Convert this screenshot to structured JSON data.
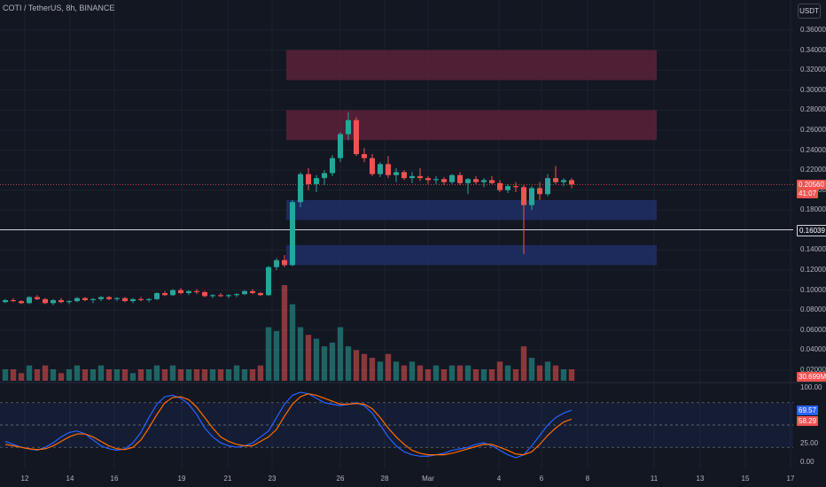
{
  "header": {
    "symbol_title": "COTI / TetherUS, 8h, BINANCE",
    "currency_button": "USDT"
  },
  "colors": {
    "background": "#131722",
    "up": "#26a69a",
    "down": "#ef5350",
    "supply_zone": "#5b2138",
    "demand_zone": "#1e2f66",
    "stoch_k": "#2962ff",
    "stoch_d": "#ff6d00"
  },
  "price_axis": {
    "ticks": [
      "0.36000",
      "0.34000",
      "0.32000",
      "0.30000",
      "0.28000",
      "0.26000",
      "0.24000",
      "0.22000",
      "0.20000",
      "0.18000",
      "0.16000",
      "0.14000",
      "0.12000",
      "0.10000",
      "0.08000",
      "0.06000",
      "0.04000",
      "0.02000"
    ],
    "last_price_label": "0.20560",
    "countdown_label": "41:07",
    "horizontal_line_label": "0.16039",
    "volume_label": "30.699M"
  },
  "osc_axis": {
    "ticks": [
      "100.00",
      "25.00",
      "0.00"
    ],
    "k_label": "69.57",
    "d_label": "58.29"
  },
  "time_axis": {
    "labels": [
      "12",
      "14",
      "16",
      "19",
      "21",
      "23",
      "26",
      "28",
      "Mar",
      "4",
      "6",
      "8",
      "11",
      "13",
      "15",
      "17"
    ]
  },
  "chart_data": {
    "type": "candlestick",
    "price_range": [
      0.0,
      0.37
    ],
    "last_price": 0.2056,
    "horizontal_line": 0.16039,
    "zones": [
      {
        "kind": "supply",
        "from": 0.31,
        "to": 0.34
      },
      {
        "kind": "supply",
        "from": 0.25,
        "to": 0.28
      },
      {
        "kind": "demand",
        "from": 0.17,
        "to": 0.19
      },
      {
        "kind": "demand",
        "from": 0.125,
        "to": 0.145
      }
    ],
    "candles": [
      [
        0.088,
        0.091,
        0.087,
        0.09
      ],
      [
        0.09,
        0.092,
        0.088,
        0.089
      ],
      [
        0.089,
        0.09,
        0.086,
        0.087
      ],
      [
        0.087,
        0.094,
        0.086,
        0.093
      ],
      [
        0.093,
        0.095,
        0.09,
        0.091
      ],
      [
        0.091,
        0.092,
        0.086,
        0.087
      ],
      [
        0.087,
        0.091,
        0.085,
        0.09
      ],
      [
        0.09,
        0.092,
        0.087,
        0.088
      ],
      [
        0.088,
        0.09,
        0.086,
        0.089
      ],
      [
        0.089,
        0.093,
        0.088,
        0.092
      ],
      [
        0.092,
        0.093,
        0.089,
        0.09
      ],
      [
        0.09,
        0.092,
        0.087,
        0.091
      ],
      [
        0.091,
        0.094,
        0.089,
        0.093
      ],
      [
        0.093,
        0.094,
        0.09,
        0.091
      ],
      [
        0.091,
        0.093,
        0.089,
        0.092
      ],
      [
        0.092,
        0.093,
        0.088,
        0.089
      ],
      [
        0.089,
        0.092,
        0.087,
        0.091
      ],
      [
        0.091,
        0.093,
        0.089,
        0.09
      ],
      [
        0.09,
        0.092,
        0.088,
        0.091
      ],
      [
        0.091,
        0.098,
        0.09,
        0.097
      ],
      [
        0.097,
        0.099,
        0.094,
        0.095
      ],
      [
        0.095,
        0.101,
        0.094,
        0.1
      ],
      [
        0.1,
        0.102,
        0.096,
        0.097
      ],
      [
        0.097,
        0.1,
        0.095,
        0.099
      ],
      [
        0.099,
        0.101,
        0.096,
        0.098
      ],
      [
        0.098,
        0.099,
        0.093,
        0.094
      ],
      [
        0.094,
        0.096,
        0.092,
        0.095
      ],
      [
        0.095,
        0.097,
        0.093,
        0.094
      ],
      [
        0.094,
        0.096,
        0.092,
        0.095
      ],
      [
        0.095,
        0.097,
        0.093,
        0.096
      ],
      [
        0.096,
        0.1,
        0.095,
        0.099
      ],
      [
        0.099,
        0.101,
        0.096,
        0.097
      ],
      [
        0.097,
        0.098,
        0.094,
        0.095
      ],
      [
        0.095,
        0.124,
        0.094,
        0.123
      ],
      [
        0.123,
        0.132,
        0.12,
        0.13
      ],
      [
        0.13,
        0.135,
        0.123,
        0.125
      ],
      [
        0.125,
        0.19,
        0.124,
        0.188
      ],
      [
        0.188,
        0.218,
        0.183,
        0.216
      ],
      [
        0.216,
        0.222,
        0.2,
        0.206
      ],
      [
        0.206,
        0.215,
        0.198,
        0.212
      ],
      [
        0.212,
        0.22,
        0.205,
        0.217
      ],
      [
        0.217,
        0.235,
        0.214,
        0.232
      ],
      [
        0.232,
        0.258,
        0.228,
        0.256
      ],
      [
        0.256,
        0.278,
        0.25,
        0.27
      ],
      [
        0.27,
        0.273,
        0.234,
        0.236
      ],
      [
        0.236,
        0.242,
        0.228,
        0.232
      ],
      [
        0.232,
        0.236,
        0.214,
        0.216
      ],
      [
        0.216,
        0.228,
        0.213,
        0.226
      ],
      [
        0.226,
        0.234,
        0.212,
        0.215
      ],
      [
        0.215,
        0.222,
        0.208,
        0.218
      ],
      [
        0.218,
        0.22,
        0.21,
        0.212
      ],
      [
        0.212,
        0.218,
        0.207,
        0.214
      ],
      [
        0.214,
        0.222,
        0.209,
        0.212
      ],
      [
        0.212,
        0.214,
        0.206,
        0.21
      ],
      [
        0.21,
        0.214,
        0.206,
        0.211
      ],
      [
        0.211,
        0.213,
        0.205,
        0.208
      ],
      [
        0.208,
        0.216,
        0.206,
        0.215
      ],
      [
        0.215,
        0.218,
        0.205,
        0.207
      ],
      [
        0.207,
        0.212,
        0.196,
        0.211
      ],
      [
        0.211,
        0.214,
        0.206,
        0.208
      ],
      [
        0.208,
        0.212,
        0.203,
        0.21
      ],
      [
        0.21,
        0.214,
        0.206,
        0.207
      ],
      [
        0.207,
        0.21,
        0.198,
        0.2
      ],
      [
        0.2,
        0.206,
        0.197,
        0.204
      ],
      [
        0.204,
        0.208,
        0.198,
        0.203
      ],
      [
        0.203,
        0.205,
        0.136,
        0.185
      ],
      [
        0.185,
        0.204,
        0.18,
        0.202
      ],
      [
        0.202,
        0.208,
        0.19,
        0.196
      ],
      [
        0.196,
        0.216,
        0.194,
        0.212
      ],
      [
        0.212,
        0.224,
        0.206,
        0.208
      ],
      [
        0.208,
        0.212,
        0.204,
        0.21
      ],
      [
        0.21,
        0.212,
        0.202,
        0.2056
      ]
    ],
    "volumes": [
      3,
      3,
      2,
      4,
      3,
      4,
      3,
      2,
      3,
      4,
      3,
      3,
      4,
      3,
      3,
      3,
      2,
      3,
      3,
      4,
      3,
      4,
      3,
      3,
      3,
      3,
      3,
      3,
      3,
      4,
      3,
      3,
      4,
      14,
      13,
      25,
      20,
      14,
      12,
      11,
      9,
      10,
      14,
      9,
      8,
      7,
      6,
      5,
      7,
      5,
      4,
      5,
      4,
      3,
      4,
      3,
      4,
      4,
      4,
      3,
      3,
      3,
      5,
      4,
      3,
      9,
      6,
      4,
      5,
      4,
      3,
      3
    ],
    "stoch_k": [
      28,
      24,
      20,
      18,
      16,
      20,
      26,
      34,
      40,
      42,
      38,
      30,
      22,
      18,
      16,
      18,
      26,
      40,
      60,
      78,
      88,
      90,
      86,
      78,
      64,
      46,
      34,
      26,
      22,
      20,
      22,
      26,
      34,
      42,
      60,
      78,
      90,
      94,
      92,
      86,
      80,
      78,
      76,
      78,
      80,
      76,
      66,
      50,
      34,
      22,
      14,
      10,
      8,
      8,
      10,
      12,
      16,
      18,
      20,
      24,
      26,
      22,
      16,
      10,
      6,
      10,
      22,
      36,
      50,
      60,
      66,
      70
    ],
    "stoch_d": [
      24,
      22,
      20,
      18,
      17,
      18,
      22,
      28,
      34,
      38,
      38,
      34,
      28,
      22,
      18,
      17,
      20,
      30,
      46,
      64,
      80,
      87,
      88,
      84,
      74,
      60,
      46,
      34,
      28,
      24,
      22,
      22,
      28,
      34,
      44,
      62,
      78,
      88,
      92,
      90,
      86,
      82,
      78,
      78,
      79,
      78,
      72,
      60,
      46,
      34,
      24,
      16,
      12,
      10,
      10,
      10,
      12,
      15,
      18,
      21,
      24,
      24,
      20,
      16,
      11,
      10,
      14,
      24,
      36,
      46,
      54,
      58
    ]
  }
}
